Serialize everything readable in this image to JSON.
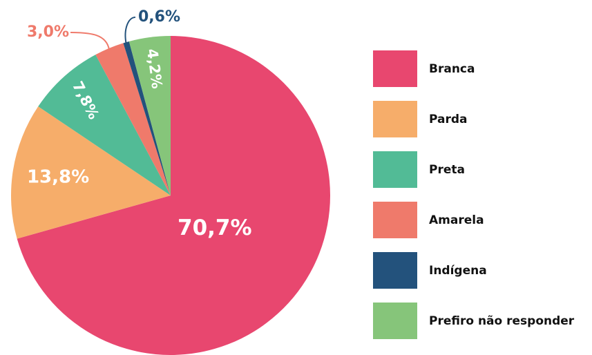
{
  "chart_data": {
    "type": "pie",
    "categories": [
      "Branca",
      "Parda",
      "Preta",
      "Amarela",
      "Indígena",
      "Prefiro não responder"
    ],
    "values": [
      70.7,
      13.8,
      7.8,
      3.0,
      0.6,
      4.2
    ],
    "value_labels": [
      "70,7%",
      "13,8%",
      "7,8%",
      "3,0%",
      "0,6%",
      "4,2%"
    ],
    "colors": [
      "#e8476f",
      "#f6ad6a",
      "#52bb96",
      "#ef7a6b",
      "#23527c",
      "#86c57a"
    ]
  }
}
